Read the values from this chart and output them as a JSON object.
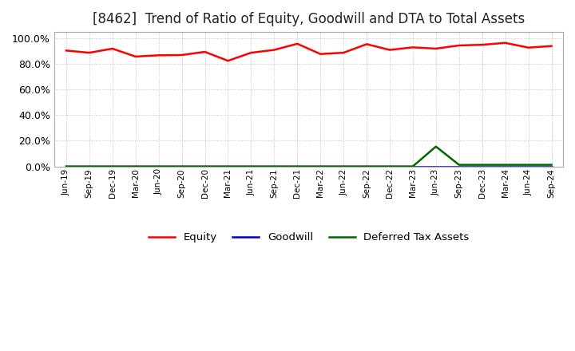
{
  "title": "[8462]  Trend of Ratio of Equity, Goodwill and DTA to Total Assets",
  "title_fontsize": 12,
  "ylim": [
    0.0,
    1.05
  ],
  "yticks": [
    0.0,
    0.2,
    0.4,
    0.6,
    0.8,
    1.0
  ],
  "x_labels": [
    "Jun-19",
    "Sep-19",
    "Dec-19",
    "Mar-20",
    "Jun-20",
    "Sep-20",
    "Dec-20",
    "Mar-21",
    "Jun-21",
    "Sep-21",
    "Dec-21",
    "Mar-22",
    "Jun-22",
    "Sep-22",
    "Dec-22",
    "Mar-23",
    "Jun-23",
    "Sep-23",
    "Dec-23",
    "Mar-24",
    "Jun-24",
    "Sep-24"
  ],
  "equity": [
    0.905,
    0.888,
    0.92,
    0.858,
    0.868,
    0.87,
    0.895,
    0.825,
    0.888,
    0.91,
    0.958,
    0.878,
    0.888,
    0.955,
    0.91,
    0.93,
    0.92,
    0.945,
    0.95,
    0.965,
    0.928,
    0.94
  ],
  "goodwill": [
    0.0,
    0.0,
    0.0,
    0.0,
    0.0,
    0.0,
    0.0,
    0.0,
    0.0,
    0.0,
    0.0,
    0.0,
    0.0,
    0.0,
    0.0,
    0.0,
    0.0,
    0.0,
    0.0,
    0.0,
    0.0,
    0.0
  ],
  "dta": [
    0.0,
    0.0,
    0.0,
    0.0,
    0.0,
    0.0,
    0.0,
    0.0,
    0.0,
    0.0,
    0.0,
    0.0,
    0.0,
    0.0,
    0.0,
    0.0,
    0.155,
    0.012,
    0.012,
    0.012,
    0.012,
    0.012
  ],
  "equity_color": "#ff0000",
  "goodwill_color": "#0000cc",
  "dta_color": "#006600",
  "legend_labels": [
    "Equity",
    "Goodwill",
    "Deferred Tax Assets"
  ],
  "bg_color": "#ffffff",
  "grid_color": "#bbbbbb",
  "plot_bg": "#ffffff"
}
